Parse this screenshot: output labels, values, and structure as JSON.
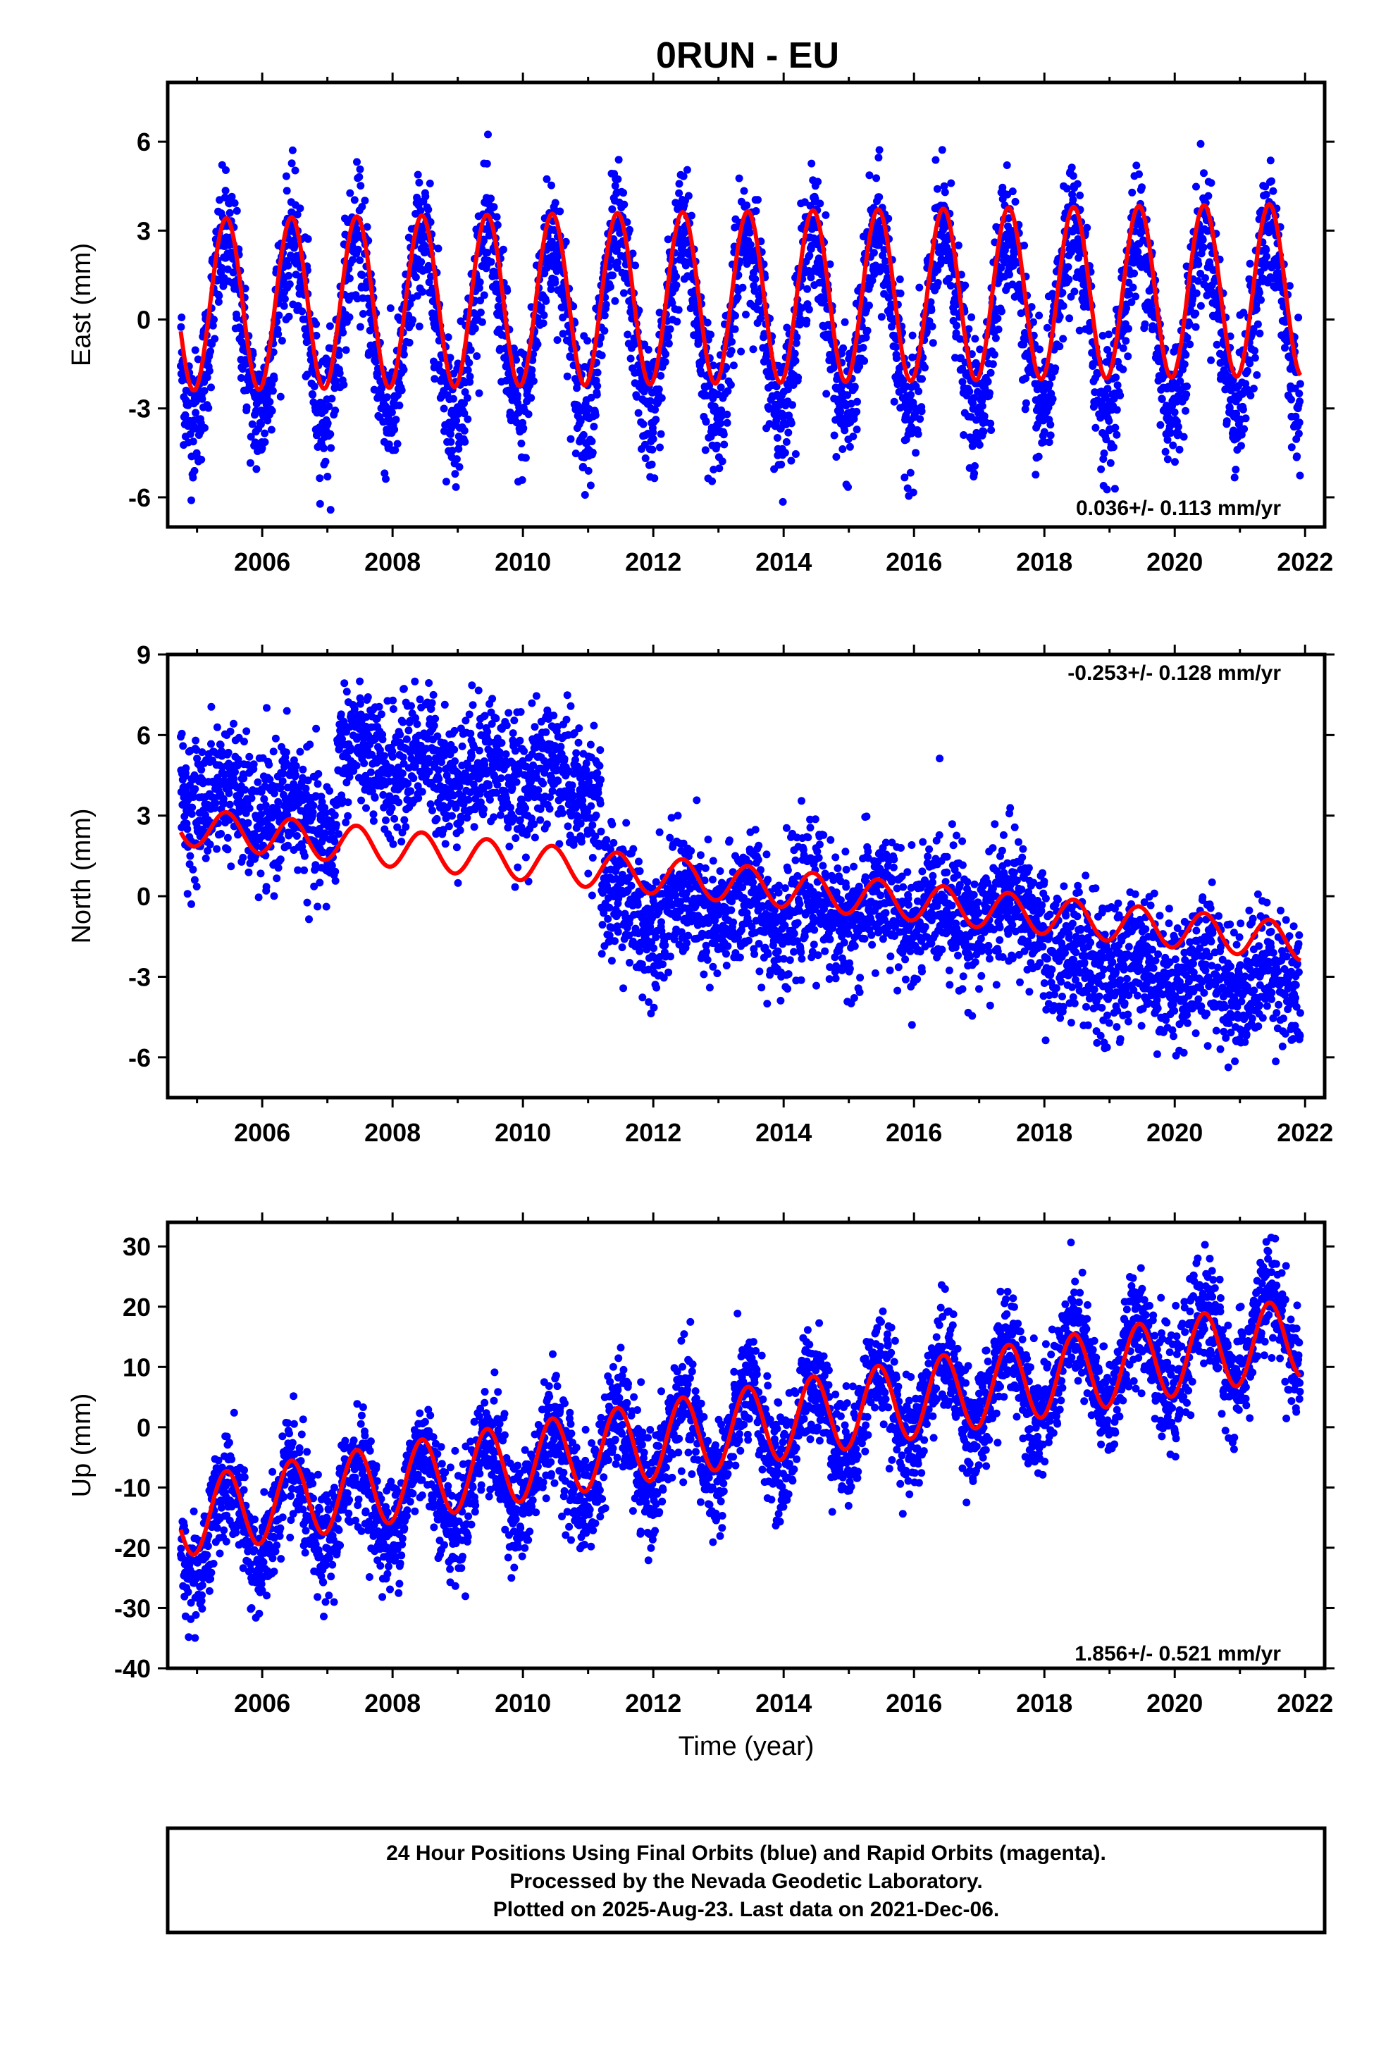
{
  "colors": {
    "data": "#0000ff",
    "model": "#ff0000",
    "frame": "#000000"
  },
  "chart_data": {
    "title": "0RUN - EU",
    "xlabel": "Time (year)",
    "footer": [
      "24 Hour Positions Using Final Orbits (blue) and Rapid Orbits (magenta).",
      "Processed by the Nevada Geodetic Laboratory.",
      "Plotted on 2025-Aug-23. Last data on 2021-Dec-06."
    ],
    "panels": [
      {
        "type": "scatter",
        "ylabel": "East (mm)",
        "rate_label": "0.036+/- 0.113 mm/yr",
        "xlim": [
          2004.55,
          2022.3
        ],
        "ylim": [
          -7,
          8
        ],
        "xticks": [
          "2006",
          "2008",
          "2010",
          "2012",
          "2014",
          "2016",
          "2018",
          "2020",
          "2022"
        ],
        "yticks": [
          "6",
          "3",
          "0",
          "-3",
          "-6"
        ],
        "grid": false,
        "series": [
          {
            "role": "data",
            "description": "daily positions, seasonal oscillation",
            "t_start": 2004.75,
            "t_end": 2021.93,
            "trend": [
              -0.3,
              0.0
            ],
            "annual_amp": 3.0,
            "noise": 1.1
          },
          {
            "role": "model",
            "t_start": 2004.75,
            "t_end": 2021.93,
            "trend": [
              0.5,
              1.0
            ],
            "annual_amp": 2.9
          }
        ]
      },
      {
        "type": "scatter",
        "ylabel": "North (mm)",
        "rate_label": "-0.253+/- 0.128 mm/yr",
        "xlim": [
          2004.55,
          2022.3
        ],
        "ylim": [
          -7.5,
          9
        ],
        "xticks": [
          "2006",
          "2008",
          "2010",
          "2012",
          "2014",
          "2016",
          "2018",
          "2020",
          "2022"
        ],
        "yticks": [
          "9",
          "6",
          "3",
          "0",
          "-3",
          "-6"
        ],
        "grid": false,
        "series": [
          {
            "role": "data",
            "segments": [
              {
                "t_start": 2004.75,
                "t_end": 2007.15,
                "level_start": 4.0,
                "level_end": 2.5
              },
              {
                "t_start": 2007.15,
                "t_end": 2011.2,
                "level_start": 5.2,
                "level_end": 4.2
              },
              {
                "t_start": 2011.2,
                "t_end": 2018.0,
                "level_start": -0.5,
                "level_end": -0.6
              },
              {
                "t_start": 2018.0,
                "t_end": 2021.93,
                "level_start": -2.3,
                "level_end": -3.2
              }
            ],
            "annual_amp": 0.6,
            "noise": 1.2
          },
          {
            "role": "model",
            "t_start": 2004.75,
            "t_end": 2021.93,
            "trend": [
              2.6,
              -1.7
            ],
            "annual_amp": 0.7
          }
        ]
      },
      {
        "type": "scatter",
        "ylabel": "Up (mm)",
        "rate_label": "1.856+/- 0.521 mm/yr",
        "xlim": [
          2004.55,
          2022.3
        ],
        "ylim": [
          -40,
          34
        ],
        "xticks": [
          "2006",
          "2008",
          "2010",
          "2012",
          "2014",
          "2016",
          "2018",
          "2020",
          "2022"
        ],
        "yticks": [
          "30",
          "20",
          "10",
          "0",
          "-10",
          "-20",
          "-30",
          "-40"
        ],
        "grid": false,
        "series": [
          {
            "role": "data",
            "t_start": 2004.75,
            "t_end": 2021.93,
            "trend": [
              -18,
              16
            ],
            "annual_amp": 7,
            "noise": 4.5
          },
          {
            "role": "model",
            "t_start": 2004.75,
            "t_end": 2021.93,
            "trend": [
              -15,
              15
            ],
            "annual_amp": 6.5
          }
        ]
      }
    ]
  }
}
